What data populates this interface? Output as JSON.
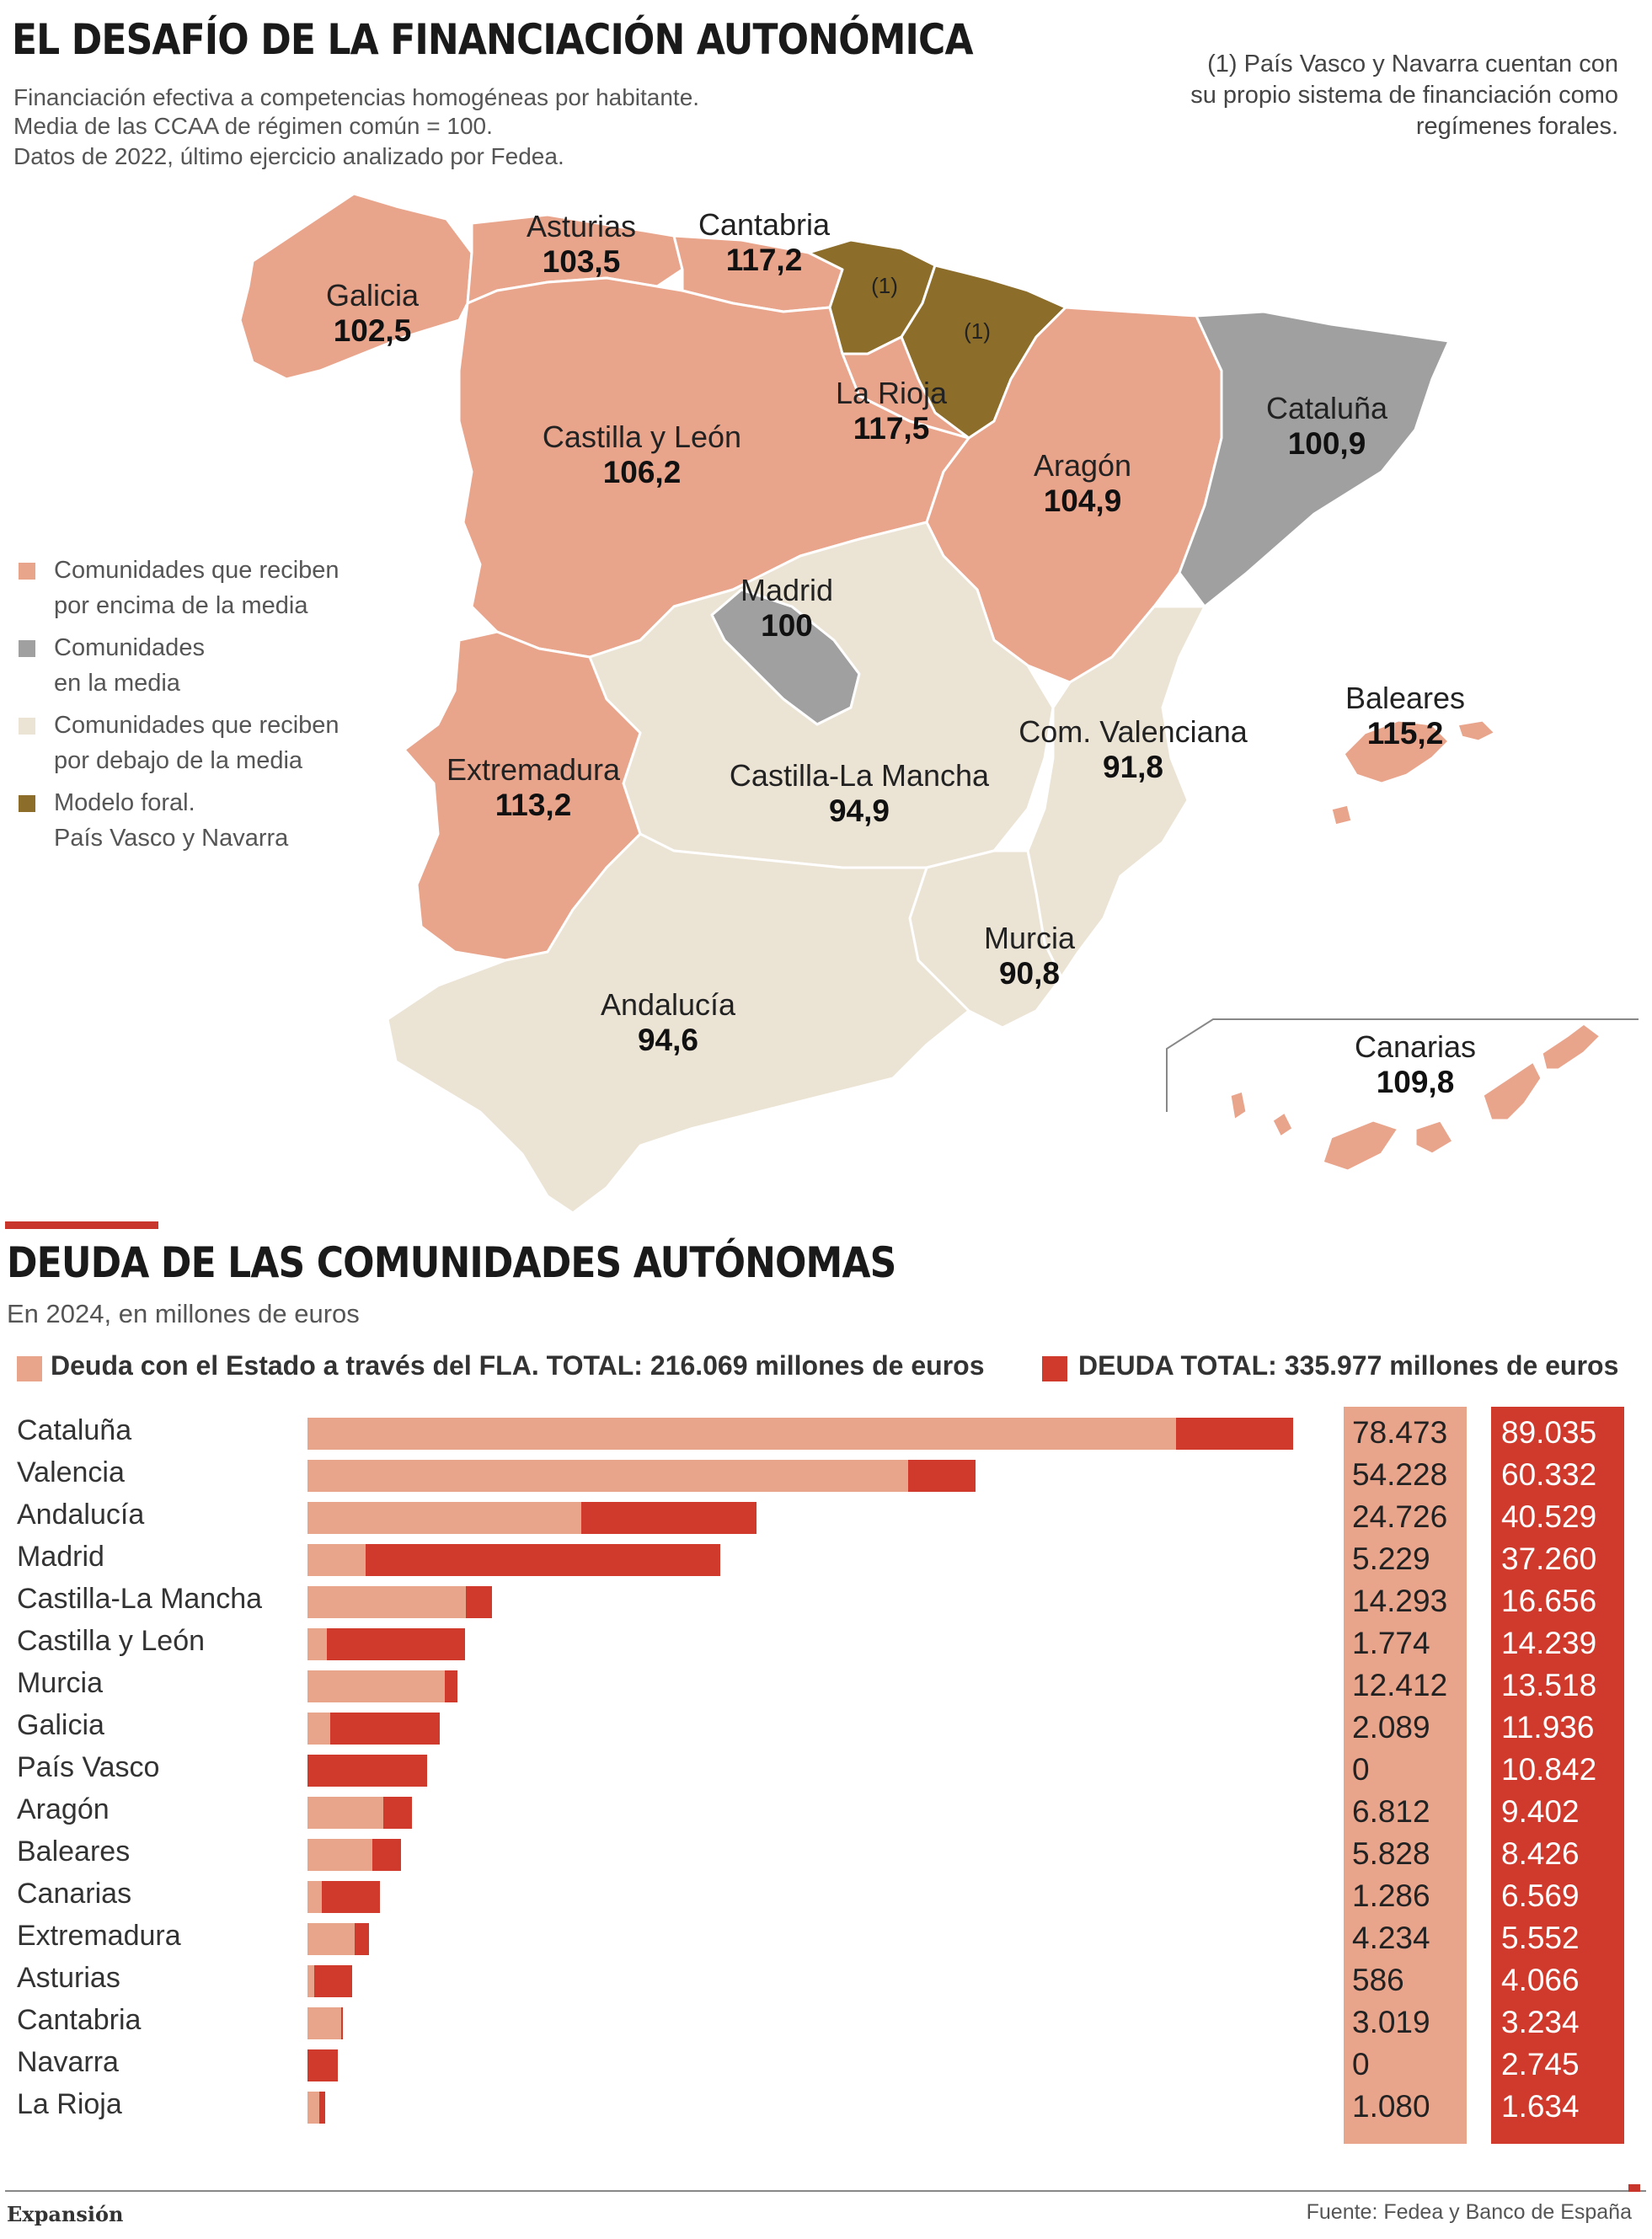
{
  "map_section": {
    "title": "EL DESAFÍO DE LA FINANCIACIÓN AUTONÓMICA",
    "subtitle_lines": [
      "Financiación efectiva a competencias homogéneas por habitante.",
      "Media de las CCAA de régimen común = 100.",
      "Datos de 2022, último ejercicio analizado por Fedea."
    ],
    "note": "(1) País Vasco y Navarra cuentan con su propio sistema de financiación como regímenes forales.",
    "legend": [
      {
        "label": "Comunidades que reciben\npor encima de la media",
        "color": "#e9a48c"
      },
      {
        "label": "Comunidades\nen la media",
        "color": "#a0a0a0"
      },
      {
        "label": "Comunidades que reciben\npor debajo de la media",
        "color": "#ebe3d4"
      },
      {
        "label": "Modelo foral.\nPaís Vasco y Navarra",
        "color": "#8c6d2a"
      }
    ],
    "colors": {
      "above": "#e9a48c",
      "average": "#a0a0a0",
      "below": "#ebe3d4",
      "foral": "#8c6d2a"
    },
    "regions": [
      {
        "name": "Galicia",
        "value": "102,5",
        "category": "above"
      },
      {
        "name": "Asturias",
        "value": "103,5",
        "category": "above"
      },
      {
        "name": "Cantabria",
        "value": "117,2",
        "category": "above"
      },
      {
        "name": "La Rioja",
        "value": "117,5",
        "category": "above"
      },
      {
        "name": "Castilla y León",
        "value": "106,2",
        "category": "above"
      },
      {
        "name": "Aragón",
        "value": "104,9",
        "category": "above"
      },
      {
        "name": "Cataluña",
        "value": "100,9",
        "category": "average"
      },
      {
        "name": "Madrid",
        "value": "100",
        "category": "average"
      },
      {
        "name": "Extremadura",
        "value": "113,2",
        "category": "above"
      },
      {
        "name": "Castilla-La Mancha",
        "value": "94,9",
        "category": "below"
      },
      {
        "name": "Com. Valenciana",
        "value": "91,8",
        "category": "below"
      },
      {
        "name": "Baleares",
        "value": "115,2",
        "category": "above"
      },
      {
        "name": "Murcia",
        "value": "90,8",
        "category": "below"
      },
      {
        "name": "Andalucía",
        "value": "94,6",
        "category": "below"
      },
      {
        "name": "Canarias",
        "value": "109,8",
        "category": "above"
      }
    ],
    "foral_marker": "(1)"
  },
  "chart_data": {
    "type": "bar",
    "orientation": "horizontal",
    "title": "DEUDA DE LAS COMUNIDADES AUTÓNOMAS",
    "subtitle": "En 2024, en millones de euros",
    "categories": [
      "Cataluña",
      "Valencia",
      "Andalucía",
      "Madrid",
      "Castilla-La Mancha",
      "Castilla y León",
      "Murcia",
      "Galicia",
      "País Vasco",
      "Aragón",
      "Baleares",
      "Canarias",
      "Extremadura",
      "Asturias",
      "Cantabria",
      "Navarra",
      "La Rioja"
    ],
    "series": [
      {
        "name": "Deuda con el Estado a través del FLA. TOTAL: 216.069 millones de euros",
        "values": [
          78473,
          54228,
          24726,
          5229,
          14293,
          1774,
          12412,
          2089,
          0,
          6812,
          5828,
          1286,
          4234,
          586,
          3019,
          0,
          1080
        ],
        "labels": [
          "78.473",
          "54.228",
          "24.726",
          "5.229",
          "14.293",
          "1.774",
          "12.412",
          "2.089",
          "0",
          "6.812",
          "5.828",
          "1.286",
          "4.234",
          "586",
          "3.019",
          "0",
          "1.080"
        ],
        "color": "#e9a48c"
      },
      {
        "name": "DEUDA TOTAL: 335.977 millones de euros",
        "values": [
          89035,
          60332,
          40529,
          37260,
          16656,
          14239,
          13518,
          11936,
          10842,
          9402,
          8426,
          6569,
          5552,
          4066,
          3234,
          2745,
          1634
        ],
        "labels": [
          "89.035",
          "60.332",
          "40.529",
          "37.260",
          "16.656",
          "14.239",
          "13.518",
          "11.936",
          "10.842",
          "9.402",
          "8.426",
          "6.569",
          "5.552",
          "4.066",
          "3.234",
          "2.745",
          "1.634"
        ],
        "color": "#cf3a2d"
      }
    ],
    "xlim": [
      0,
      89035
    ],
    "grid": false,
    "legend": "top"
  },
  "footer": {
    "publisher": "Expansión",
    "source": "Fuente: Fedea y Banco de España"
  }
}
